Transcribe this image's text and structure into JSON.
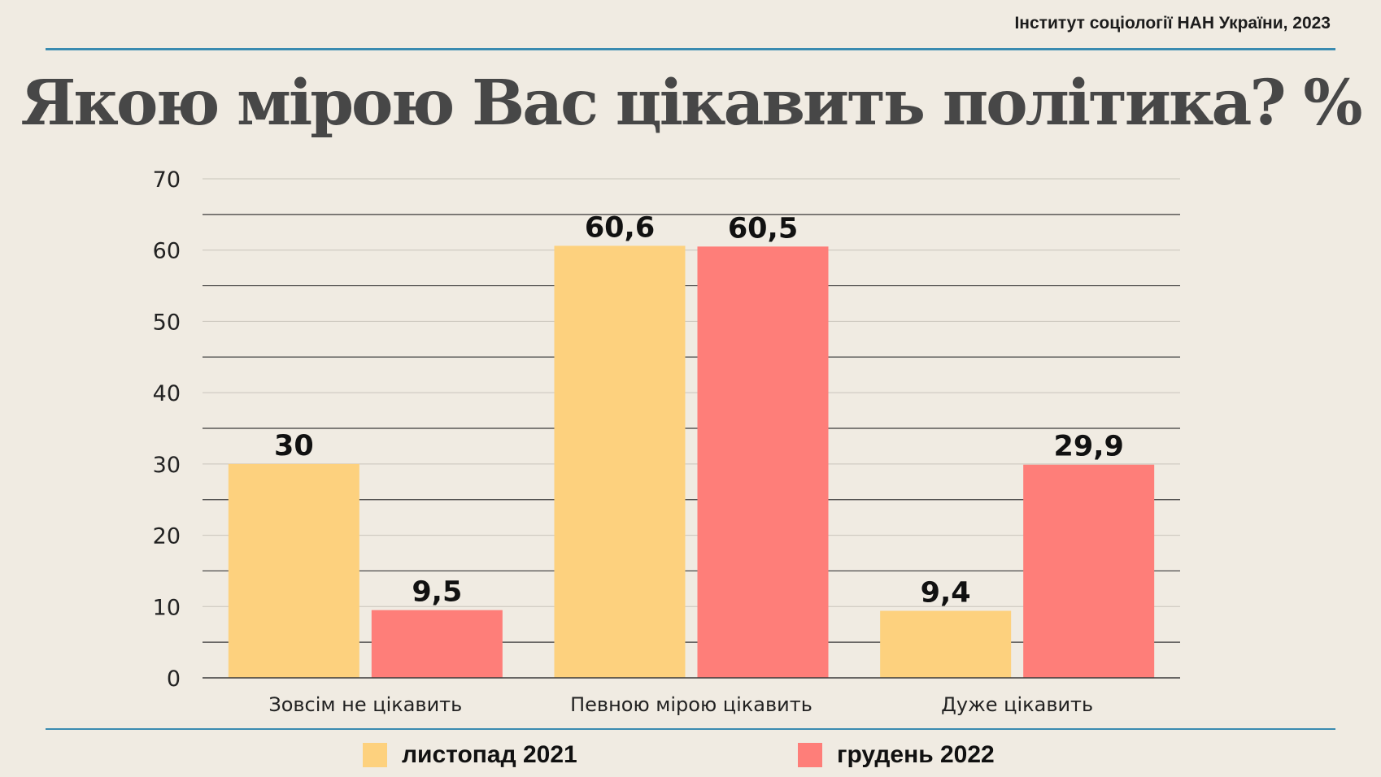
{
  "header": {
    "source": "Інститут соціології НАН України, 2023",
    "title": "Якою мірою Вас цікавить політика? %"
  },
  "colors": {
    "series1": "#fdd17e",
    "series2": "#fe7e79",
    "rule": "#3a8bb0",
    "background": "#f0ebe2"
  },
  "chart_data": {
    "type": "bar",
    "title": "Якою мірою Вас цікавить політика? %",
    "categories": [
      "Зовсім не цікавить",
      "Певною мірою цікавить",
      "Дуже цікавить"
    ],
    "series": [
      {
        "name": "листопад 2021",
        "values": [
          30,
          60.6,
          9.4
        ],
        "labels": [
          "30",
          "60,6",
          "9,4"
        ]
      },
      {
        "name": "грудень 2022",
        "values": [
          9.5,
          60.5,
          29.9
        ],
        "labels": [
          "9,5",
          "60,5",
          "29,9"
        ]
      }
    ],
    "ylim": [
      0,
      70
    ],
    "yticks": [
      0,
      10,
      20,
      30,
      40,
      50,
      60,
      70
    ],
    "grid": true,
    "legend_position": "bottom",
    "xlabel": "",
    "ylabel": ""
  }
}
